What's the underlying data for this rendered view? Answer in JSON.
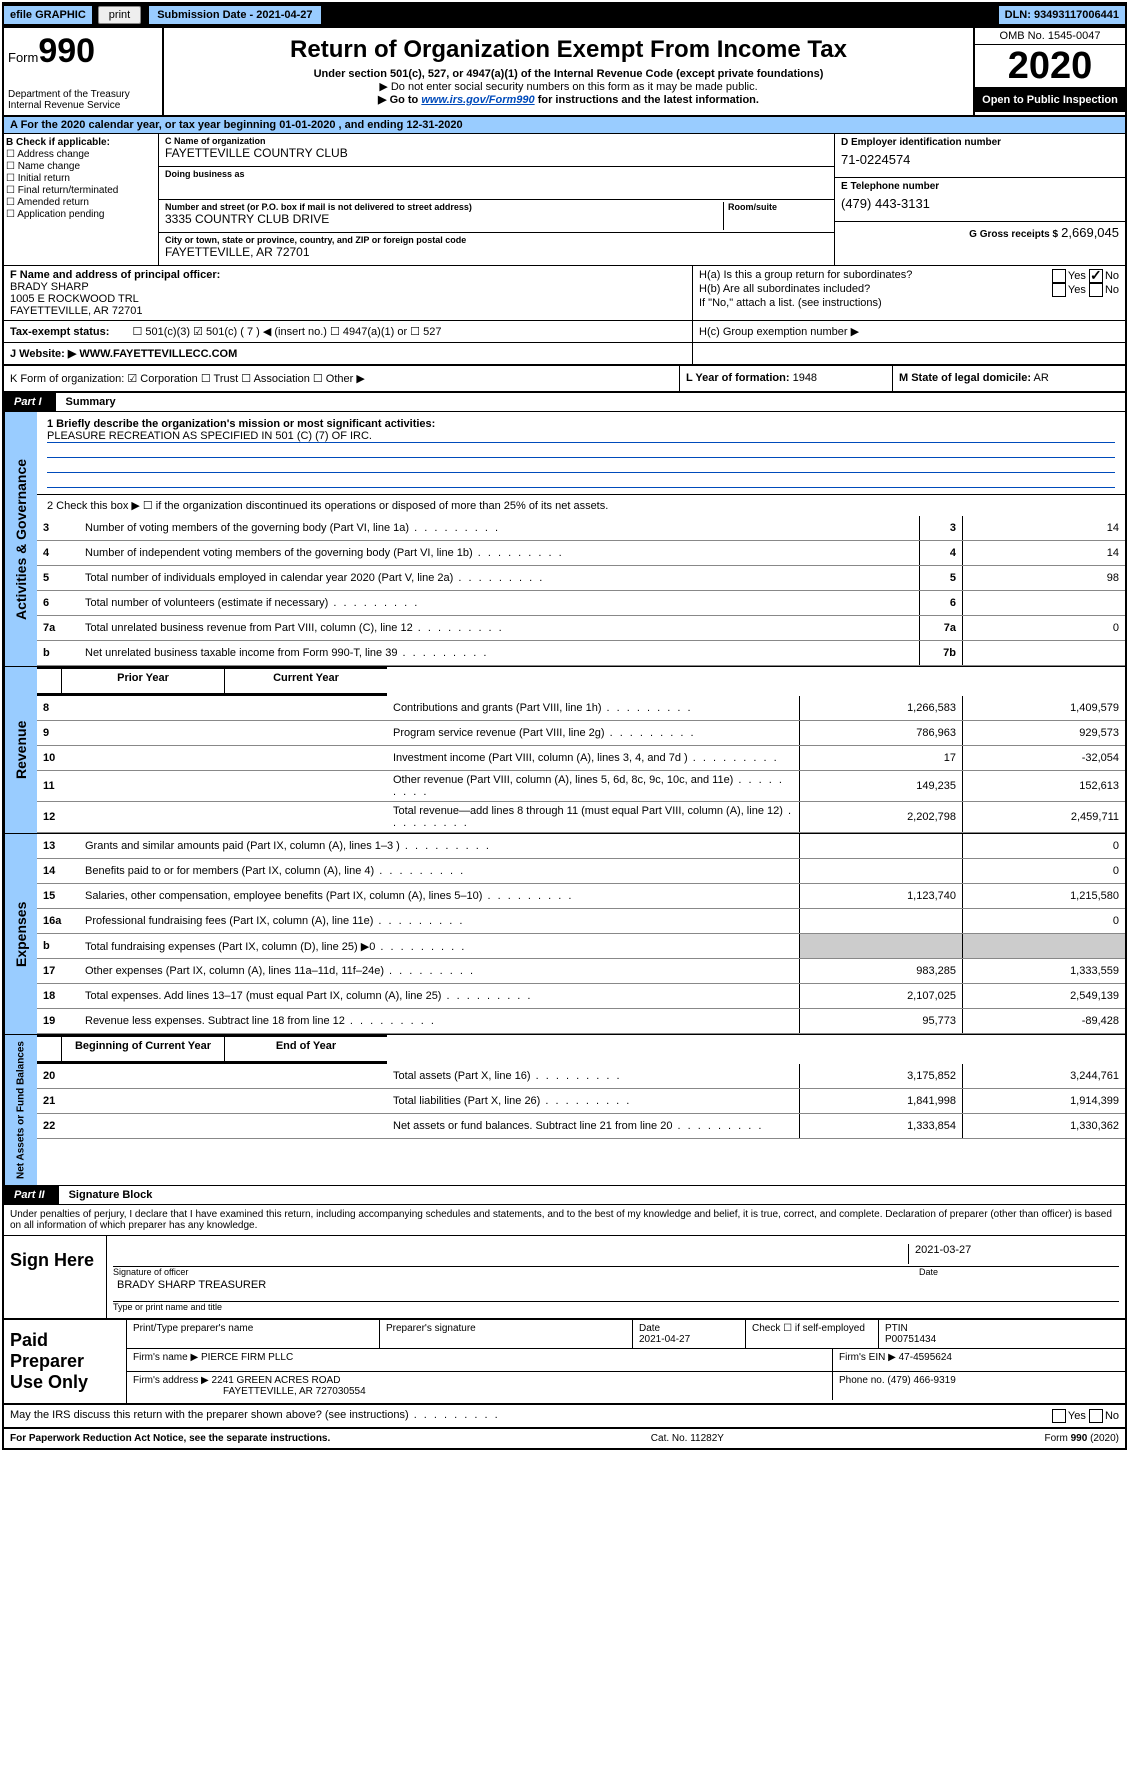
{
  "topbar": {
    "efile": "efile GRAPHIC",
    "print": "print",
    "submission": "Submission Date - 2021-04-27",
    "dln": "DLN: 93493117006441"
  },
  "header": {
    "form_label": "Form",
    "form_num": "990",
    "dept": "Department of the Treasury Internal Revenue Service",
    "title": "Return of Organization Exempt From Income Tax",
    "sub1": "Under section 501(c), 527, or 4947(a)(1) of the Internal Revenue Code (except private foundations)",
    "sub2": "▶ Do not enter social security numbers on this form as it may be made public.",
    "sub3_pre": "▶ Go to ",
    "sub3_link": "www.irs.gov/Form990",
    "sub3_post": " for instructions and the latest information.",
    "omb": "OMB No. 1545-0047",
    "year": "2020",
    "open": "Open to Public Inspection"
  },
  "row_a": "A For the 2020 calendar year, or tax year beginning 01-01-2020   , and ending 12-31-2020",
  "col_b": {
    "label": "B Check if applicable:",
    "opts": [
      "☐ Address change",
      "☐ Name change",
      "☐ Initial return",
      "☐ Final return/terminated",
      "☐ Amended return",
      "☐ Application pending"
    ]
  },
  "col_c": {
    "name_label": "C Name of organization",
    "name": "FAYETTEVILLE COUNTRY CLUB",
    "dba_label": "Doing business as",
    "dba": "",
    "addr_label": "Number and street (or P.O. box if mail is not delivered to street address)",
    "room_label": "Room/suite",
    "addr": "3335 COUNTRY CLUB DRIVE",
    "city_label": "City or town, state or province, country, and ZIP or foreign postal code",
    "city": "FAYETTEVILLE, AR  72701"
  },
  "col_d": {
    "ein_label": "D Employer identification number",
    "ein": "71-0224574",
    "phone_label": "E Telephone number",
    "phone": "(479) 443-3131",
    "gross_label": "G Gross receipts $",
    "gross": "2,669,045"
  },
  "col_f": {
    "label": "F  Name and address of principal officer:",
    "name": "BRADY SHARP",
    "addr1": "1005 E ROCKWOOD TRL",
    "addr2": "FAYETTEVILLE, AR  72701"
  },
  "col_h": {
    "a": "H(a)  Is this a group return for subordinates?",
    "a_yes": "Yes",
    "a_no": "No",
    "b": "H(b)  Are all subordinates included?",
    "b_yes": "Yes",
    "b_no": "No",
    "b_note": "If \"No,\" attach a list. (see instructions)",
    "c": "H(c)  Group exemption number ▶"
  },
  "tax": {
    "label": "Tax-exempt status:",
    "opts": "☐ 501(c)(3)   ☑ 501(c) ( 7 ) ◀ (insert no.)   ☐ 4947(a)(1) or   ☐ 527"
  },
  "row_j": {
    "label": "J   Website: ▶",
    "val": "WWW.FAYETTEVILLECC.COM"
  },
  "row_k": "K Form of organization:  ☑ Corporation  ☐ Trust  ☐ Association  ☐ Other ▶",
  "row_l_label": "L Year of formation:",
  "row_l": "1948",
  "row_m_label": "M State of legal domicile:",
  "row_m": "AR",
  "part1": {
    "label": "Part I",
    "title": "Summary"
  },
  "mission": {
    "q": "1   Briefly describe the organization's mission or most significant activities:",
    "a": "PLEASURE RECREATION AS SPECIFIED IN 501 (C) (7) OF IRC."
  },
  "governance": {
    "tab": "Activities & Governance",
    "line2": "2   Check this box ▶ ☐  if the organization discontinued its operations or disposed of more than 25% of its net assets.",
    "rows": [
      {
        "n": "3",
        "desc": "Number of voting members of the governing body (Part VI, line 1a)",
        "box": "3",
        "val": "14"
      },
      {
        "n": "4",
        "desc": "Number of independent voting members of the governing body (Part VI, line 1b)",
        "box": "4",
        "val": "14"
      },
      {
        "n": "5",
        "desc": "Total number of individuals employed in calendar year 2020 (Part V, line 2a)",
        "box": "5",
        "val": "98"
      },
      {
        "n": "6",
        "desc": "Total number of volunteers (estimate if necessary)",
        "box": "6",
        "val": ""
      },
      {
        "n": "7a",
        "desc": "Total unrelated business revenue from Part VIII, column (C), line 12",
        "box": "7a",
        "val": "0"
      },
      {
        "n": "b",
        "desc": "Net unrelated business taxable income from Form 990-T, line 39",
        "box": "7b",
        "val": ""
      }
    ]
  },
  "revenue": {
    "tab": "Revenue",
    "header_prior": "Prior Year",
    "header_current": "Current Year",
    "rows": [
      {
        "n": "8",
        "desc": "Contributions and grants (Part VIII, line 1h)",
        "prior": "1,266,583",
        "curr": "1,409,579"
      },
      {
        "n": "9",
        "desc": "Program service revenue (Part VIII, line 2g)",
        "prior": "786,963",
        "curr": "929,573"
      },
      {
        "n": "10",
        "desc": "Investment income (Part VIII, column (A), lines 3, 4, and 7d )",
        "prior": "17",
        "curr": "-32,054"
      },
      {
        "n": "11",
        "desc": "Other revenue (Part VIII, column (A), lines 5, 6d, 8c, 9c, 10c, and 11e)",
        "prior": "149,235",
        "curr": "152,613"
      },
      {
        "n": "12",
        "desc": "Total revenue—add lines 8 through 11 (must equal Part VIII, column (A), line 12)",
        "prior": "2,202,798",
        "curr": "2,459,711"
      }
    ]
  },
  "expenses": {
    "tab": "Expenses",
    "rows": [
      {
        "n": "13",
        "desc": "Grants and similar amounts paid (Part IX, column (A), lines 1–3 )",
        "prior": "",
        "curr": "0"
      },
      {
        "n": "14",
        "desc": "Benefits paid to or for members (Part IX, column (A), line 4)",
        "prior": "",
        "curr": "0"
      },
      {
        "n": "15",
        "desc": "Salaries, other compensation, employee benefits (Part IX, column (A), lines 5–10)",
        "prior": "1,123,740",
        "curr": "1,215,580"
      },
      {
        "n": "16a",
        "desc": "Professional fundraising fees (Part IX, column (A), line 11e)",
        "prior": "",
        "curr": "0"
      },
      {
        "n": "b",
        "desc": "Total fundraising expenses (Part IX, column (D), line 25) ▶0",
        "prior": "",
        "curr": "",
        "shaded": true
      },
      {
        "n": "17",
        "desc": "Other expenses (Part IX, column (A), lines 11a–11d, 11f–24e)",
        "prior": "983,285",
        "curr": "1,333,559"
      },
      {
        "n": "18",
        "desc": "Total expenses. Add lines 13–17 (must equal Part IX, column (A), line 25)",
        "prior": "2,107,025",
        "curr": "2,549,139"
      },
      {
        "n": "19",
        "desc": "Revenue less expenses. Subtract line 18 from line 12",
        "prior": "95,773",
        "curr": "-89,428"
      }
    ]
  },
  "netassets": {
    "tab": "Net Assets or Fund Balances",
    "header_begin": "Beginning of Current Year",
    "header_end": "End of Year",
    "rows": [
      {
        "n": "20",
        "desc": "Total assets (Part X, line 16)",
        "prior": "3,175,852",
        "curr": "3,244,761"
      },
      {
        "n": "21",
        "desc": "Total liabilities (Part X, line 26)",
        "prior": "1,841,998",
        "curr": "1,914,399"
      },
      {
        "n": "22",
        "desc": "Net assets or fund balances. Subtract line 21 from line 20",
        "prior": "1,333,854",
        "curr": "1,330,362"
      }
    ]
  },
  "part2": {
    "label": "Part II",
    "title": "Signature Block"
  },
  "perjury": "Under penalties of perjury, I declare that I have examined this return, including accompanying schedules and statements, and to the best of my knowledge and belief, it is true, correct, and complete. Declaration of preparer (other than officer) is based on all information of which preparer has any knowledge.",
  "sign": {
    "label": "Sign Here",
    "sig_caption": "Signature of officer",
    "date": "2021-03-27",
    "date_caption": "Date",
    "name": "BRADY SHARP  TREASURER",
    "name_caption": "Type or print name and title"
  },
  "paid": {
    "label": "Paid Preparer Use Only",
    "h1": "Print/Type preparer's name",
    "h2": "Preparer's signature",
    "h3": "Date",
    "h3v": "2021-04-27",
    "h4": "Check ☐ if self-employed",
    "h5": "PTIN",
    "h5v": "P00751434",
    "firm_label": "Firm's name      ▶",
    "firm": "PIERCE FIRM PLLC",
    "ein_label": "Firm's EIN ▶",
    "ein": "47-4595624",
    "addr_label": "Firm's address ▶",
    "addr": "2241 GREEN ACRES ROAD",
    "addr2": "FAYETTEVILLE, AR  727030554",
    "phone_label": "Phone no.",
    "phone": "(479) 466-9319"
  },
  "discuss": "May the IRS discuss this return with the preparer shown above? (see instructions)",
  "discuss_yes": "Yes",
  "discuss_no": "No",
  "footer": {
    "left": "For Paperwork Reduction Act Notice, see the separate instructions.",
    "mid": "Cat. No. 11282Y",
    "right": "Form 990 (2020)"
  }
}
